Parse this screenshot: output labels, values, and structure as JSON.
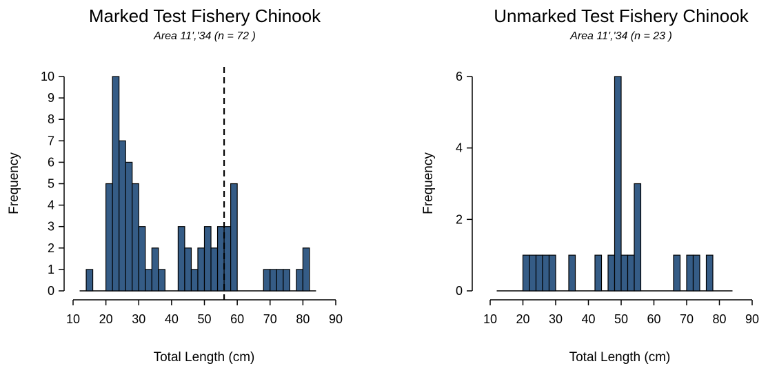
{
  "colors": {
    "bar_fill": "#355c86",
    "bar_stroke": "#000000",
    "axis": "#000000"
  },
  "chart_data": [
    {
      "type": "bar",
      "title": "Marked Test Fishery Chinook",
      "subtitle": "Area 11','34  (n = 72 )",
      "xlabel": "Total Length (cm)",
      "ylabel": "Frequency",
      "xlim": [
        10,
        90
      ],
      "ylim": [
        0,
        10
      ],
      "xticks": [
        10,
        20,
        30,
        40,
        50,
        60,
        70,
        80,
        90
      ],
      "yticks": [
        0,
        1,
        2,
        3,
        4,
        5,
        6,
        7,
        8,
        9,
        10
      ],
      "baseline": [
        12,
        84
      ],
      "bin_width": 2,
      "bins": [
        {
          "start": 14,
          "count": 1
        },
        {
          "start": 20,
          "count": 5
        },
        {
          "start": 22,
          "count": 10
        },
        {
          "start": 24,
          "count": 7
        },
        {
          "start": 26,
          "count": 6
        },
        {
          "start": 28,
          "count": 5
        },
        {
          "start": 30,
          "count": 3
        },
        {
          "start": 32,
          "count": 1
        },
        {
          "start": 34,
          "count": 2
        },
        {
          "start": 36,
          "count": 1
        },
        {
          "start": 42,
          "count": 3
        },
        {
          "start": 44,
          "count": 2
        },
        {
          "start": 46,
          "count": 1
        },
        {
          "start": 48,
          "count": 2
        },
        {
          "start": 50,
          "count": 3
        },
        {
          "start": 52,
          "count": 2
        },
        {
          "start": 54,
          "count": 3
        },
        {
          "start": 56,
          "count": 3
        },
        {
          "start": 58,
          "count": 5
        },
        {
          "start": 68,
          "count": 1
        },
        {
          "start": 70,
          "count": 1
        },
        {
          "start": 72,
          "count": 1
        },
        {
          "start": 74,
          "count": 1
        },
        {
          "start": 78,
          "count": 1
        },
        {
          "start": 80,
          "count": 2
        }
      ],
      "reference_line_x": 56
    },
    {
      "type": "bar",
      "title": "Unmarked Test Fishery Chinook",
      "subtitle": "Area 11','34  (n = 23 )",
      "xlabel": "Total Length (cm)",
      "ylabel": "Frequency",
      "xlim": [
        10,
        90
      ],
      "ylim": [
        0,
        6
      ],
      "xticks": [
        10,
        20,
        30,
        40,
        50,
        60,
        70,
        80,
        90
      ],
      "yticks": [
        0,
        2,
        4,
        6
      ],
      "baseline": [
        12,
        84
      ],
      "bin_width": 2,
      "bins": [
        {
          "start": 20,
          "count": 1
        },
        {
          "start": 22,
          "count": 1
        },
        {
          "start": 24,
          "count": 1
        },
        {
          "start": 26,
          "count": 1
        },
        {
          "start": 28,
          "count": 1
        },
        {
          "start": 34,
          "count": 1
        },
        {
          "start": 42,
          "count": 1
        },
        {
          "start": 46,
          "count": 1
        },
        {
          "start": 48,
          "count": 6
        },
        {
          "start": 50,
          "count": 1
        },
        {
          "start": 52,
          "count": 1
        },
        {
          "start": 54,
          "count": 3
        },
        {
          "start": 66,
          "count": 1
        },
        {
          "start": 70,
          "count": 1
        },
        {
          "start": 72,
          "count": 1
        },
        {
          "start": 76,
          "count": 1
        }
      ],
      "reference_line_x": null
    }
  ]
}
